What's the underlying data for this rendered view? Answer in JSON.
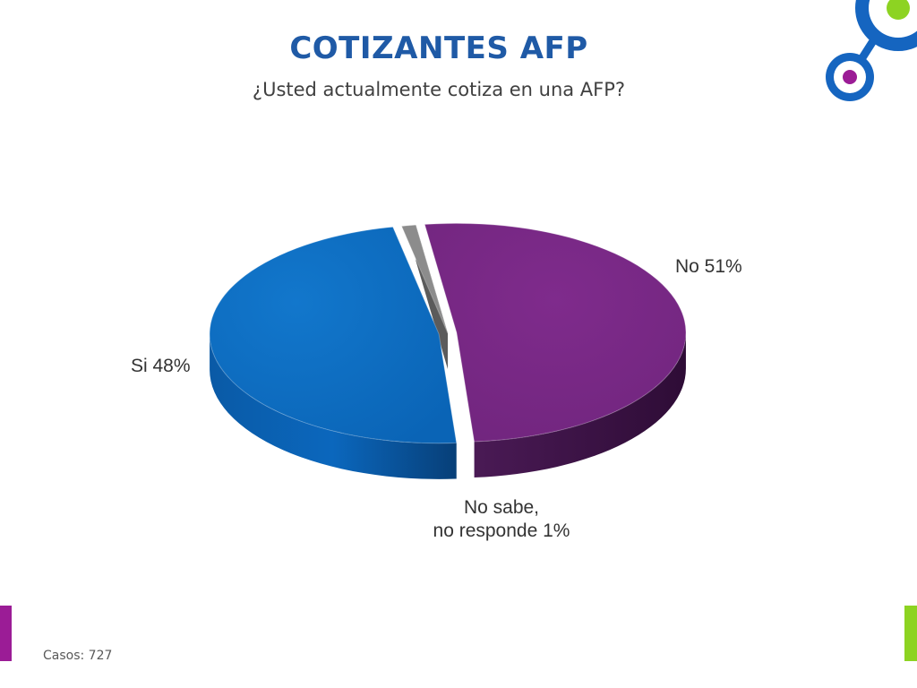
{
  "header": {
    "title": "COTIZANTES AFP",
    "subtitle": "¿Usted actualmente cotiza en una AFP?"
  },
  "footer": {
    "casos": "Casos: 727"
  },
  "chart_data": {
    "type": "pie",
    "title": "COTIZANTES AFP",
    "subtitle": "¿Usted actualmente cotiza en una AFP?",
    "categories": [
      "No",
      "Si",
      "No sabe, no responde"
    ],
    "values": [
      51,
      48,
      1
    ],
    "labels": [
      "No 51%",
      "Si 48%",
      "No sabe, no responde 1%"
    ],
    "colors": [
      "#7a2a86",
      "#0d6fc2",
      "#8c8c8c"
    ],
    "style": "3d-exploded",
    "legend": "none"
  },
  "decoration": {
    "logo_colors": [
      "#1565c0",
      "#8dd322",
      "#9b1c96"
    ]
  }
}
